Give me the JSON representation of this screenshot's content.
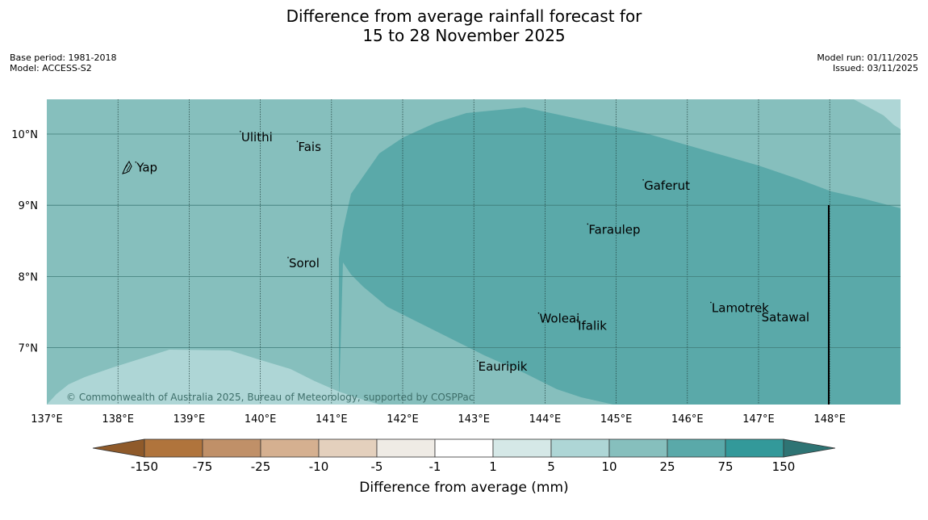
{
  "title": {
    "line1": "Difference from average rainfall forecast for",
    "line2": "15 to 28 November 2025"
  },
  "info_left": {
    "base_period": "Base period: 1981-2018",
    "model": "Model: ACCESS-S2"
  },
  "info_right": {
    "model_run": "Model run: 01/11/2025",
    "issued": "Issued: 03/11/2025"
  },
  "map": {
    "lon_labels": [
      "137°E",
      "138°E",
      "139°E",
      "140°E",
      "141°E",
      "142°E",
      "143°E",
      "144°E",
      "145°E",
      "146°E",
      "147°E",
      "148°E"
    ],
    "lat_labels": [
      "10°N",
      "9°N",
      "8°N",
      "7°N"
    ],
    "places": [
      {
        "name": "Yap",
        "lon": 138.25,
        "lat": 9.47
      },
      {
        "name": "Ulithi",
        "lon": 139.72,
        "lat": 9.9
      },
      {
        "name": "Fais",
        "lon": 140.52,
        "lat": 9.76
      },
      {
        "name": "Gaferut",
        "lon": 145.38,
        "lat": 9.22
      },
      {
        "name": "Faraulep",
        "lon": 144.6,
        "lat": 8.6
      },
      {
        "name": "Sorol",
        "lon": 140.39,
        "lat": 8.13
      },
      {
        "name": "Woleai",
        "lon": 143.91,
        "lat": 7.35
      },
      {
        "name": "Ifalik",
        "lon": 144.45,
        "lat": 7.25
      },
      {
        "name": "Lamotrek",
        "lon": 146.33,
        "lat": 7.5
      },
      {
        "name": "Satawal",
        "lon": 147.03,
        "lat": 7.37
      },
      {
        "name": "Eauripik",
        "lon": 143.05,
        "lat": 6.68
      }
    ],
    "copyright": "© Commonwealth of Australia 2025, Bureau of Meteorology, supported by COSPPac"
  },
  "colorbar": {
    "title": "Difference from average (mm)",
    "tick_labels": [
      "-150",
      "-75",
      "-25",
      "-10",
      "-5",
      "-1",
      "1",
      "5",
      "10",
      "25",
      "75",
      "150"
    ],
    "colors": {
      "under": "#8f5a2a",
      "bins": [
        "#b0743c",
        "#c09068",
        "#d5b090",
        "#e4d0bd",
        "#efebe5",
        "#ffffff",
        "#d5e8e7",
        "#aed6d6",
        "#86bfbd",
        "#5aa9a9",
        "#33999a"
      ],
      "over": "#2e7474"
    }
  },
  "fields": {
    "colors": {
      "base": "#86bfbd",
      "wet": "#5aa9a9",
      "drier": "#aed6d6"
    }
  }
}
